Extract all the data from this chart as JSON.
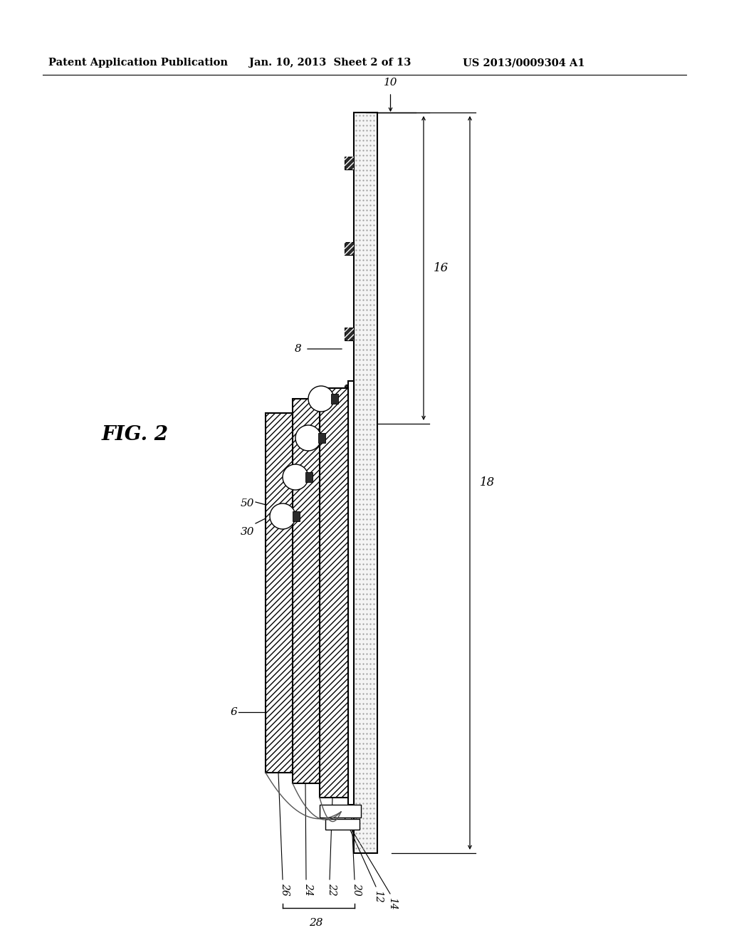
{
  "bg_color": "#ffffff",
  "header_left": "Patent Application Publication",
  "header_mid": "Jan. 10, 2013  Sheet 2 of 13",
  "header_right": "US 2013/0009304 A1",
  "fig_label": "FIG. 2",
  "label_10": "10",
  "label_16": "16",
  "label_8": "8",
  "label_18": "18",
  "label_6": "6",
  "label_30": "30",
  "label_50": "50",
  "label_26": "26",
  "label_24": "24",
  "label_22": "22",
  "label_20": "20",
  "label_12": "12",
  "label_14": "14",
  "label_28": "28"
}
